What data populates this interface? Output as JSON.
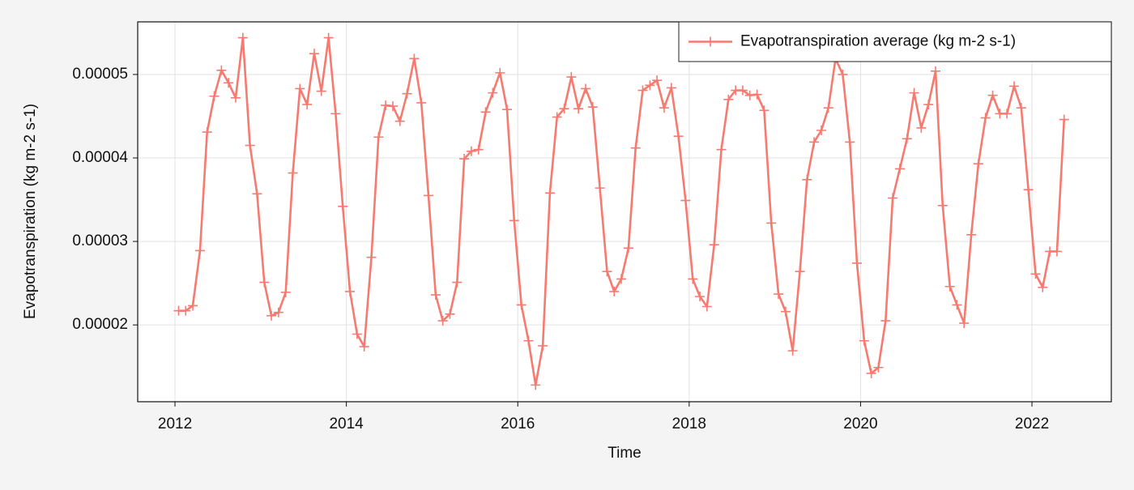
{
  "chart_data": {
    "type": "line",
    "xlabel": "Time",
    "ylabel": "Evapotranspiration (kg m-2 s-1)",
    "x": [
      2012.042,
      2012.125,
      2012.208,
      2012.292,
      2012.375,
      2012.458,
      2012.542,
      2012.625,
      2012.708,
      2012.792,
      2012.875,
      2012.958,
      2013.042,
      2013.125,
      2013.208,
      2013.292,
      2013.375,
      2013.458,
      2013.542,
      2013.625,
      2013.708,
      2013.792,
      2013.875,
      2013.958,
      2014.042,
      2014.125,
      2014.208,
      2014.292,
      2014.375,
      2014.458,
      2014.542,
      2014.625,
      2014.708,
      2014.792,
      2014.875,
      2014.958,
      2015.042,
      2015.125,
      2015.208,
      2015.292,
      2015.375,
      2015.458,
      2015.542,
      2015.625,
      2015.708,
      2015.792,
      2015.875,
      2015.958,
      2016.042,
      2016.125,
      2016.208,
      2016.292,
      2016.375,
      2016.458,
      2016.542,
      2016.625,
      2016.708,
      2016.792,
      2016.875,
      2016.958,
      2017.042,
      2017.125,
      2017.208,
      2017.292,
      2017.375,
      2017.458,
      2017.542,
      2017.625,
      2017.708,
      2017.792,
      2017.875,
      2017.958,
      2018.042,
      2018.125,
      2018.208,
      2018.292,
      2018.375,
      2018.458,
      2018.542,
      2018.625,
      2018.708,
      2018.792,
      2018.875,
      2018.958,
      2019.042,
      2019.125,
      2019.208,
      2019.292,
      2019.375,
      2019.458,
      2019.542,
      2019.625,
      2019.708,
      2019.792,
      2019.875,
      2019.958,
      2020.042,
      2020.125,
      2020.208,
      2020.292,
      2020.375,
      2020.458,
      2020.542,
      2020.625,
      2020.708,
      2020.792,
      2020.875,
      2020.958,
      2021.042,
      2021.125,
      2021.208,
      2021.292,
      2021.375,
      2021.458,
      2021.542,
      2021.625,
      2021.708,
      2021.792,
      2021.875,
      2021.958,
      2022.042,
      2022.125,
      2022.208,
      2022.292,
      2022.375
    ],
    "series": [
      {
        "name": "Evapotranspiration average (kg m-2 s-1)",
        "color": "#f77a70",
        "values": [
          2.17e-05,
          2.17e-05,
          2.23e-05,
          2.89e-05,
          4.31e-05,
          4.74e-05,
          5.05e-05,
          4.9e-05,
          4.72e-05,
          5.44e-05,
          4.15e-05,
          3.57e-05,
          2.51e-05,
          2.11e-05,
          2.15e-05,
          2.39e-05,
          3.82e-05,
          4.83e-05,
          4.64e-05,
          5.25e-05,
          4.8e-05,
          5.44e-05,
          4.53e-05,
          3.42e-05,
          2.4e-05,
          1.89e-05,
          1.74e-05,
          2.81e-05,
          4.25e-05,
          4.63e-05,
          4.62e-05,
          4.44e-05,
          4.77e-05,
          5.19e-05,
          4.66e-05,
          3.55e-05,
          2.36e-05,
          2.05e-05,
          2.13e-05,
          2.51e-05,
          3.99e-05,
          4.08e-05,
          4.1e-05,
          4.55e-05,
          4.78e-05,
          5.02e-05,
          4.58e-05,
          3.25e-05,
          2.24e-05,
          1.81e-05,
          1.28e-05,
          1.75e-05,
          3.58e-05,
          4.49e-05,
          4.59e-05,
          4.97e-05,
          4.59e-05,
          4.83e-05,
          4.61e-05,
          3.64e-05,
          2.64e-05,
          2.4e-05,
          2.55e-05,
          2.92e-05,
          4.12e-05,
          4.81e-05,
          4.87e-05,
          4.93e-05,
          4.6e-05,
          4.84e-05,
          4.26e-05,
          3.49e-05,
          2.55e-05,
          2.34e-05,
          2.22e-05,
          2.96e-05,
          4.1e-05,
          4.7e-05,
          4.81e-05,
          4.81e-05,
          4.75e-05,
          4.76e-05,
          4.57e-05,
          3.22e-05,
          2.37e-05,
          2.16e-05,
          1.69e-05,
          2.64e-05,
          3.74e-05,
          4.19e-05,
          4.33e-05,
          4.6e-05,
          5.19e-05,
          5e-05,
          4.19e-05,
          2.74e-05,
          1.81e-05,
          1.42e-05,
          1.49e-05,
          2.05e-05,
          3.52e-05,
          3.87e-05,
          4.23e-05,
          4.78e-05,
          4.36e-05,
          4.64e-05,
          5.04e-05,
          3.43e-05,
          2.46e-05,
          2.24e-05,
          2.02e-05,
          3.08e-05,
          3.93e-05,
          4.48e-05,
          4.75e-05,
          4.53e-05,
          4.53e-05,
          4.86e-05,
          4.6e-05,
          3.62e-05,
          2.61e-05,
          2.45e-05,
          2.88e-05,
          2.88e-05,
          4.46e-05
        ]
      }
    ],
    "xlim": [
      2011.565,
      2022.926
    ],
    "xticks": [
      2012,
      2014,
      2016,
      2018,
      2020,
      2022
    ],
    "ylim": [
      1.08e-05,
      5.63e-05
    ],
    "yticks": [
      2e-05,
      3e-05,
      4e-05,
      5e-05
    ],
    "grid": true,
    "legend": "upper right"
  }
}
